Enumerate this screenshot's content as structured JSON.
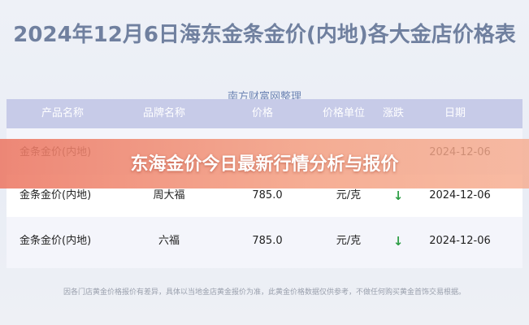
{
  "header": {
    "title": "2024年12月6日海东金条金价(内地)各大金店价格表",
    "subtitle": "南方财富网整理"
  },
  "table": {
    "columns": [
      "产品名称",
      "品牌名称",
      "价格",
      "价格单位",
      "涨跌",
      "日期"
    ],
    "rows": [
      {
        "product": "金条金价(内地)",
        "date": "2024-12-06"
      },
      {
        "product": "金条金价(内地)",
        "brand": "周大福",
        "price": "785.0",
        "unit": "元/克",
        "trend": "↓",
        "date": "2024-12-06"
      },
      {
        "product": "金条金价(内地)",
        "brand": "六福",
        "price": "785.0",
        "unit": "元/克",
        "trend": "↓",
        "date": "2024-12-06"
      }
    ]
  },
  "banner": "东海金价今日最新行情分析与报价",
  "footnote": "因各门店黄金价格报价有差异，具体以当地金店黄金报价为准，此黄金价格数据仅供参考，不做任何购买黄金首饰交易根据。"
}
